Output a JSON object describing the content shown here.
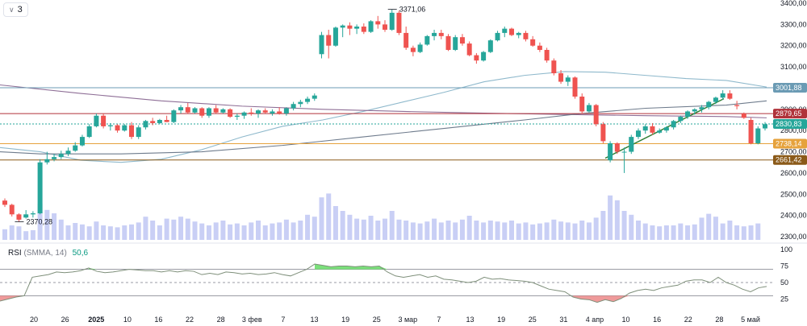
{
  "legend": {
    "toggle_icon": "chevron-down-icon",
    "toggle_count": "3"
  },
  "colors": {
    "up": "#26a69a",
    "down": "#ef5350",
    "ma_blue": "#8fb9cc",
    "ma_purple": "#8e6e96",
    "ma_gray": "#6e7b8c",
    "trend": "#2e7d32",
    "volume": "#c9cff5",
    "rsi_line": "#7e8f7a"
  },
  "chart_data": {
    "type": "candlestick",
    "y_axis": {
      "min": 2300,
      "max": 3400,
      "ticks": [
        "3400,00",
        "3300,00",
        "3200,00",
        "3100,00",
        "2900,00",
        "2800,00",
        "2700,00",
        "2600,00",
        "2500,00",
        "2400,00",
        "2300,00"
      ]
    },
    "x_axis": {
      "ticks": [
        "20",
        "26",
        "2025",
        "10",
        "16",
        "22",
        "28",
        "3 фев",
        "7",
        "13",
        "19",
        "25",
        "3 мар",
        "7",
        "13",
        "19",
        "25",
        "31",
        "4 апр",
        "10",
        "16",
        "22",
        "28",
        "5 май"
      ]
    },
    "candles": [
      [
        2470,
        2480,
        2440,
        2450
      ],
      [
        2450,
        2455,
        2395,
        2405
      ],
      [
        2405,
        2410,
        2370,
        2380
      ],
      [
        2390,
        2425,
        2385,
        2405
      ],
      [
        2405,
        2420,
        2390,
        2410
      ],
      [
        2410,
        2665,
        2405,
        2650
      ],
      [
        2650,
        2700,
        2640,
        2665
      ],
      [
        2665,
        2690,
        2655,
        2675
      ],
      [
        2675,
        2705,
        2665,
        2690
      ],
      [
        2690,
        2720,
        2680,
        2705
      ],
      [
        2705,
        2745,
        2700,
        2730
      ],
      [
        2730,
        2780,
        2725,
        2770
      ],
      [
        2770,
        2830,
        2765,
        2820
      ],
      [
        2820,
        2880,
        2815,
        2870
      ],
      [
        2870,
        2880,
        2810,
        2820
      ],
      [
        2820,
        2835,
        2800,
        2825
      ],
      [
        2825,
        2830,
        2790,
        2800
      ],
      [
        2800,
        2830,
        2795,
        2825
      ],
      [
        2825,
        2840,
        2760,
        2770
      ],
      [
        2770,
        2825,
        2760,
        2815
      ],
      [
        2815,
        2850,
        2805,
        2845
      ],
      [
        2845,
        2860,
        2825,
        2835
      ],
      [
        2835,
        2855,
        2830,
        2850
      ],
      [
        2850,
        2870,
        2840,
        2840
      ],
      [
        2840,
        2900,
        2835,
        2895
      ],
      [
        2895,
        2920,
        2880,
        2910
      ],
      [
        2910,
        2930,
        2880,
        2885
      ],
      [
        2885,
        2910,
        2880,
        2905
      ],
      [
        2905,
        2910,
        2860,
        2870
      ],
      [
        2870,
        2910,
        2860,
        2905
      ],
      [
        2905,
        2920,
        2880,
        2885
      ],
      [
        2885,
        2905,
        2880,
        2900
      ],
      [
        2900,
        2905,
        2860,
        2865
      ],
      [
        2865,
        2880,
        2850,
        2870
      ],
      [
        2870,
        2890,
        2855,
        2885
      ],
      [
        2885,
        2905,
        2870,
        2880
      ],
      [
        2880,
        2900,
        2860,
        2895
      ],
      [
        2895,
        2905,
        2880,
        2885
      ],
      [
        2880,
        2900,
        2870,
        2890
      ],
      [
        2890,
        2910,
        2875,
        2880
      ],
      [
        2880,
        2910,
        2870,
        2905
      ],
      [
        2905,
        2935,
        2895,
        2925
      ],
      [
        2925,
        2945,
        2910,
        2935
      ],
      [
        2935,
        2960,
        2925,
        2950
      ],
      [
        2950,
        2975,
        2940,
        2965
      ],
      [
        3160,
        3265,
        3140,
        3250
      ],
      [
        3250,
        3275,
        3140,
        3200
      ],
      [
        3200,
        3290,
        3195,
        3285
      ],
      [
        3285,
        3300,
        3240,
        3295
      ],
      [
        3295,
        3310,
        3250,
        3280
      ],
      [
        3280,
        3300,
        3255,
        3290
      ],
      [
        3290,
        3305,
        3255,
        3265
      ],
      [
        3265,
        3320,
        3260,
        3315
      ],
      [
        3315,
        3340,
        3280,
        3300
      ],
      [
        3300,
        3320,
        3265,
        3275
      ],
      [
        3275,
        3371,
        3270,
        3355
      ],
      [
        3355,
        3365,
        3250,
        3260
      ],
      [
        3260,
        3290,
        3180,
        3190
      ],
      [
        3190,
        3200,
        3150,
        3170
      ],
      [
        3170,
        3215,
        3165,
        3205
      ],
      [
        3205,
        3250,
        3200,
        3245
      ],
      [
        3245,
        3275,
        3225,
        3260
      ],
      [
        3260,
        3275,
        3230,
        3245
      ],
      [
        3245,
        3255,
        3175,
        3180
      ],
      [
        3180,
        3250,
        3175,
        3240
      ],
      [
        3240,
        3255,
        3200,
        3210
      ],
      [
        3210,
        3220,
        3150,
        3155
      ],
      [
        3155,
        3165,
        3115,
        3130
      ],
      [
        3130,
        3175,
        3125,
        3170
      ],
      [
        3170,
        3230,
        3165,
        3225
      ],
      [
        3225,
        3270,
        3220,
        3260
      ],
      [
        3260,
        3290,
        3240,
        3280
      ],
      [
        3280,
        3285,
        3245,
        3250
      ],
      [
        3250,
        3265,
        3235,
        3260
      ],
      [
        3260,
        3270,
        3220,
        3230
      ],
      [
        3230,
        3245,
        3195,
        3200
      ],
      [
        3200,
        3215,
        3170,
        3180
      ],
      [
        3180,
        3190,
        3120,
        3130
      ],
      [
        3130,
        3140,
        3060,
        3070
      ],
      [
        3070,
        3085,
        3020,
        3030
      ],
      [
        3030,
        3060,
        3010,
        3050
      ],
      [
        3050,
        3055,
        2950,
        2960
      ],
      [
        2960,
        2975,
        2880,
        2890
      ],
      [
        2890,
        2930,
        2885,
        2920
      ],
      [
        2920,
        2925,
        2820,
        2830
      ],
      [
        2830,
        2840,
        2740,
        2750
      ],
      [
        2660,
        2750,
        2650,
        2740
      ],
      [
        2740,
        2745,
        2690,
        2700
      ],
      [
        2700,
        2720,
        2600,
        2700
      ],
      [
        2700,
        2780,
        2690,
        2770
      ],
      [
        2770,
        2810,
        2760,
        2800
      ],
      [
        2800,
        2830,
        2785,
        2820
      ],
      [
        2820,
        2835,
        2780,
        2790
      ],
      [
        2790,
        2810,
        2785,
        2800
      ],
      [
        2800,
        2820,
        2790,
        2815
      ],
      [
        2815,
        2850,
        2805,
        2845
      ],
      [
        2845,
        2870,
        2835,
        2865
      ],
      [
        2865,
        2895,
        2855,
        2890
      ],
      [
        2890,
        2905,
        2875,
        2900
      ],
      [
        2900,
        2920,
        2885,
        2910
      ],
      [
        2910,
        2940,
        2900,
        2935
      ],
      [
        2935,
        2960,
        2925,
        2955
      ],
      [
        2955,
        2990,
        2945,
        2975
      ],
      [
        2975,
        2990,
        2945,
        2950
      ],
      [
        2920,
        2940,
        2900,
        2915
      ],
      [
        2880,
        2885,
        2855,
        2860
      ],
      [
        2850,
        2860,
        2735,
        2740
      ],
      [
        2740,
        2820,
        2735,
        2810
      ],
      [
        2810,
        2840,
        2800,
        2830
      ]
    ],
    "volumes": [
      0.22,
      0.3,
      0.28,
      0.18,
      0.2,
      0.75,
      0.62,
      0.55,
      0.42,
      0.3,
      0.35,
      0.32,
      0.28,
      0.38,
      0.3,
      0.28,
      0.26,
      0.3,
      0.32,
      0.36,
      0.48,
      0.4,
      0.3,
      0.44,
      0.42,
      0.48,
      0.44,
      0.38,
      0.34,
      0.3,
      0.36,
      0.4,
      0.32,
      0.34,
      0.3,
      0.36,
      0.4,
      0.3,
      0.34,
      0.36,
      0.42,
      0.36,
      0.4,
      0.52,
      0.48,
      0.88,
      0.96,
      0.7,
      0.6,
      0.52,
      0.44,
      0.42,
      0.5,
      0.4,
      0.44,
      0.6,
      0.42,
      0.4,
      0.36,
      0.34,
      0.38,
      0.44,
      0.36,
      0.4,
      0.36,
      0.42,
      0.5,
      0.4,
      0.36,
      0.4,
      0.38,
      0.36,
      0.4,
      0.34,
      0.36,
      0.32,
      0.34,
      0.36,
      0.42,
      0.38,
      0.36,
      0.34,
      0.4,
      0.36,
      0.46,
      0.6,
      0.92,
      0.82,
      0.6,
      0.52,
      0.4,
      0.34,
      0.3,
      0.28,
      0.3,
      0.3,
      0.34,
      0.3,
      0.32,
      0.46,
      0.54,
      0.48,
      0.34,
      0.4,
      0.3,
      0.28,
      0.3,
      0.34
    ],
    "ma_blue": [
      [
        0,
        2720
      ],
      [
        50,
        2700
      ],
      [
        100,
        2660
      ],
      [
        150,
        2650
      ],
      [
        200,
        2665
      ],
      [
        250,
        2710
      ],
      [
        300,
        2770
      ],
      [
        350,
        2820
      ],
      [
        400,
        2850
      ],
      [
        450,
        2890
      ],
      [
        500,
        2935
      ],
      [
        550,
        2980
      ],
      [
        600,
        3030
      ],
      [
        650,
        3060
      ],
      [
        700,
        3078
      ],
      [
        750,
        3075
      ],
      [
        800,
        3060
      ],
      [
        850,
        3045
      ],
      [
        900,
        3036
      ],
      [
        950,
        3005
      ]
    ],
    "ma_purple": [
      [
        0,
        3015
      ],
      [
        100,
        2975
      ],
      [
        200,
        2940
      ],
      [
        300,
        2915
      ],
      [
        400,
        2900
      ],
      [
        500,
        2890
      ],
      [
        600,
        2882
      ],
      [
        700,
        2876
      ],
      [
        800,
        2870
      ],
      [
        900,
        2866
      ],
      [
        950,
        2860
      ]
    ],
    "ma_gray": [
      [
        0,
        2700
      ],
      [
        50,
        2690
      ],
      [
        150,
        2690
      ],
      [
        250,
        2700
      ],
      [
        350,
        2730
      ],
      [
        450,
        2770
      ],
      [
        550,
        2810
      ],
      [
        650,
        2850
      ],
      [
        720,
        2880
      ],
      [
        800,
        2905
      ],
      [
        900,
        2920
      ],
      [
        950,
        2940
      ]
    ],
    "trend": [
      [
        750,
        2670
      ],
      [
        897,
        2950
      ]
    ],
    "hlines": [
      {
        "value": 3001.88,
        "label": "3001,88",
        "color": "#6b9bb4",
        "dashed": false
      },
      {
        "value": 2879.65,
        "label": "2879,65",
        "color": "#b0323a",
        "dashed": false
      },
      {
        "value": 2830.83,
        "label": "2830,83",
        "color": "#26a69a",
        "dashed": true
      },
      {
        "value": 2738.14,
        "label": "2738,14",
        "color": "#e6a23c",
        "dashed": false
      },
      {
        "value": 2661.42,
        "label": "2661,42",
        "color": "#8b5a19",
        "dashed": false
      }
    ],
    "annotations": [
      {
        "text": "3371,06",
        "value": 3371.06,
        "x_index": 55
      },
      {
        "text": "2370,28",
        "value": 2370.28,
        "x_index": 2
      }
    ],
    "rsi": {
      "name": "RSI",
      "params": "(SMMA, 14)",
      "value": "50,6",
      "ticks": [
        "100",
        "75",
        "50",
        "25"
      ],
      "levels": [
        70,
        50,
        30
      ],
      "points": [
        [
          0,
          22
        ],
        [
          10,
          25
        ],
        [
          20,
          28
        ],
        [
          30,
          30
        ],
        [
          40,
          58
        ],
        [
          50,
          60
        ],
        [
          60,
          62
        ],
        [
          70,
          66
        ],
        [
          80,
          65
        ],
        [
          90,
          66
        ],
        [
          100,
          68
        ],
        [
          110,
          72
        ],
        [
          120,
          67
        ],
        [
          130,
          65
        ],
        [
          140,
          66
        ],
        [
          150,
          68
        ],
        [
          160,
          70
        ],
        [
          170,
          69
        ],
        [
          180,
          68
        ],
        [
          190,
          68
        ],
        [
          200,
          66
        ],
        [
          210,
          68
        ],
        [
          220,
          66
        ],
        [
          230,
          68
        ],
        [
          240,
          67
        ],
        [
          250,
          62
        ],
        [
          260,
          64
        ],
        [
          270,
          62
        ],
        [
          280,
          66
        ],
        [
          290,
          65
        ],
        [
          300,
          63
        ],
        [
          310,
          64
        ],
        [
          320,
          62
        ],
        [
          330,
          63
        ],
        [
          340,
          65
        ],
        [
          350,
          62
        ],
        [
          360,
          60
        ],
        [
          370,
          65
        ],
        [
          380,
          70
        ],
        [
          390,
          78
        ],
        [
          400,
          76
        ],
        [
          410,
          74
        ],
        [
          420,
          75
        ],
        [
          430,
          75
        ],
        [
          440,
          74
        ],
        [
          450,
          75
        ],
        [
          460,
          74
        ],
        [
          470,
          75
        ],
        [
          480,
          66
        ],
        [
          490,
          60
        ],
        [
          500,
          58
        ],
        [
          510,
          60
        ],
        [
          520,
          62
        ],
        [
          530,
          58
        ],
        [
          540,
          60
        ],
        [
          550,
          55
        ],
        [
          560,
          54
        ],
        [
          570,
          52
        ],
        [
          580,
          50
        ],
        [
          590,
          52
        ],
        [
          600,
          58
        ],
        [
          610,
          55
        ],
        [
          620,
          56
        ],
        [
          630,
          54
        ],
        [
          640,
          53
        ],
        [
          650,
          52
        ],
        [
          660,
          50
        ],
        [
          670,
          45
        ],
        [
          680,
          40
        ],
        [
          690,
          38
        ],
        [
          700,
          36
        ],
        [
          710,
          28
        ],
        [
          720,
          25
        ],
        [
          730,
          24
        ],
        [
          740,
          20
        ],
        [
          750,
          24
        ],
        [
          760,
          21
        ],
        [
          770,
          26
        ],
        [
          780,
          34
        ],
        [
          790,
          38
        ],
        [
          800,
          40
        ],
        [
          810,
          38
        ],
        [
          820,
          42
        ],
        [
          830,
          44
        ],
        [
          840,
          46
        ],
        [
          850,
          52
        ],
        [
          860,
          54
        ],
        [
          870,
          54
        ],
        [
          880,
          50
        ],
        [
          890,
          58
        ],
        [
          900,
          50
        ],
        [
          910,
          46
        ],
        [
          920,
          40
        ],
        [
          930,
          36
        ],
        [
          940,
          42
        ],
        [
          950,
          44
        ]
      ]
    }
  }
}
